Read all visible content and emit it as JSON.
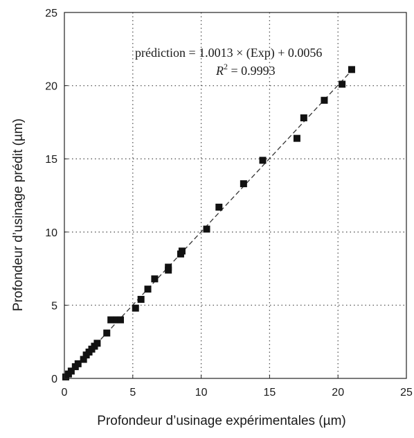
{
  "chart_data": {
    "type": "scatter",
    "xlabel": "Profondeur d’usinage expérimentales (µm)",
    "ylabel": "Profondeur d’usinage prédit (µm)",
    "xlim": [
      0,
      25
    ],
    "ylim": [
      0,
      25
    ],
    "xticks": [
      "0",
      "5",
      "10",
      "15",
      "20",
      "25"
    ],
    "yticks": [
      "0",
      "5",
      "10",
      "15",
      "20",
      "25"
    ],
    "grid": "dotted",
    "annotation": {
      "equation": "prédiction = 1.0013 × (Exp) + 0.0056",
      "r2_label": "R",
      "r2_sup": "2",
      "r2_value": " = 0.9993"
    },
    "fit_line": {
      "slope": 1.0013,
      "intercept": 0.0056,
      "style": "dashed"
    },
    "points": [
      {
        "x": 0.1,
        "y": 0.1
      },
      {
        "x": 0.3,
        "y": 0.3
      },
      {
        "x": 0.5,
        "y": 0.5
      },
      {
        "x": 0.8,
        "y": 0.8
      },
      {
        "x": 1.0,
        "y": 1.0
      },
      {
        "x": 1.4,
        "y": 1.3
      },
      {
        "x": 1.6,
        "y": 1.6
      },
      {
        "x": 1.8,
        "y": 1.8
      },
      {
        "x": 2.0,
        "y": 2.0
      },
      {
        "x": 2.2,
        "y": 2.2
      },
      {
        "x": 2.4,
        "y": 2.4
      },
      {
        "x": 3.1,
        "y": 3.1
      },
      {
        "x": 3.4,
        "y": 4.0
      },
      {
        "x": 3.8,
        "y": 4.0
      },
      {
        "x": 4.1,
        "y": 4.0
      },
      {
        "x": 5.2,
        "y": 4.8
      },
      {
        "x": 5.6,
        "y": 5.4
      },
      {
        "x": 6.1,
        "y": 6.1
      },
      {
        "x": 6.6,
        "y": 6.8
      },
      {
        "x": 7.6,
        "y": 7.4
      },
      {
        "x": 7.6,
        "y": 7.6
      },
      {
        "x": 8.5,
        "y": 8.5
      },
      {
        "x": 8.6,
        "y": 8.7
      },
      {
        "x": 10.4,
        "y": 10.2
      },
      {
        "x": 11.3,
        "y": 11.7
      },
      {
        "x": 13.1,
        "y": 13.3
      },
      {
        "x": 14.5,
        "y": 14.9
      },
      {
        "x": 17.0,
        "y": 16.4
      },
      {
        "x": 17.5,
        "y": 17.8
      },
      {
        "x": 19.0,
        "y": 19.0
      },
      {
        "x": 20.3,
        "y": 20.1
      },
      {
        "x": 21.0,
        "y": 21.1
      }
    ]
  }
}
